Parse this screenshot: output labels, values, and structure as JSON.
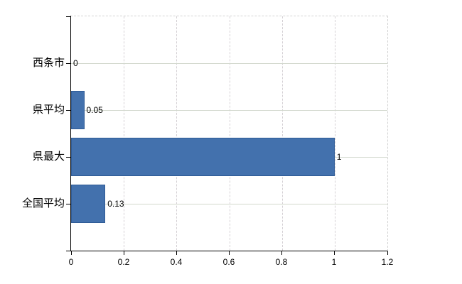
{
  "chart_data": {
    "type": "bar",
    "orientation": "horizontal",
    "title": "",
    "xlabel": "",
    "ylabel": "",
    "categories": [
      "西条市",
      "県平均",
      "県最大",
      "全国平均"
    ],
    "values": [
      0,
      0.05,
      1,
      0.13
    ],
    "value_labels": [
      "0",
      "0.05",
      "1",
      "0.13"
    ],
    "xlim": [
      0,
      1.2
    ],
    "x_tick_values": [
      0,
      0.2,
      0.4,
      0.6,
      0.8,
      1,
      1.2
    ],
    "x_tick_labels": [
      "0",
      "0.2",
      "0.4",
      "0.6",
      "0.8",
      "1",
      "1.2"
    ],
    "legend": false,
    "grid": "vertical dashed lines at x ticks; horizontal solid lines at category rows; dashed top and right plot border",
    "colors": {
      "bar_fill": "#4371ad",
      "bar_border": "#2f5b96",
      "axis": "#000000",
      "grid_vertical": "#d5d1d5",
      "grid_horizontal": "#d2d8cd",
      "plot_border_dashed": "#d3d3d3",
      "text": "#000000",
      "background": "#ffffff"
    }
  }
}
